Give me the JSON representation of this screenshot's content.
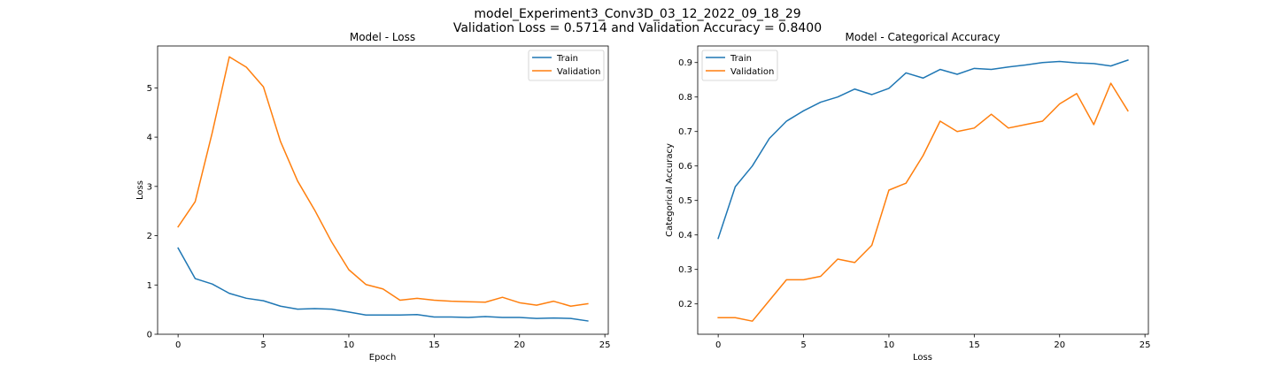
{
  "figure": {
    "title_line1": "model_Experiment3_Conv3D_03_12_2022_09_18_29",
    "title_line2": "Validation Loss = 0.5714 and Validation Accuracy = 0.8400"
  },
  "colors": {
    "train": "#1f77b4",
    "validation": "#ff7f0e"
  },
  "chart_data": [
    {
      "type": "line",
      "title": "Model - Loss",
      "xlabel": "Epoch",
      "ylabel": "Loss",
      "xlim": [
        -1.2,
        25.2
      ],
      "ylim": [
        0,
        5.85
      ],
      "xticks": [
        0,
        5,
        10,
        15,
        20,
        25
      ],
      "yticks": [
        0,
        1,
        2,
        3,
        4,
        5
      ],
      "ytick_decimals": 0,
      "legend": "upper-right",
      "grid": false,
      "x": [
        0,
        1,
        2,
        3,
        4,
        5,
        6,
        7,
        8,
        9,
        10,
        11,
        12,
        13,
        14,
        15,
        16,
        17,
        18,
        19,
        20,
        21,
        22,
        23,
        24
      ],
      "series": [
        {
          "name": "Train",
          "color": "#1f77b4",
          "values": [
            1.75,
            1.13,
            1.02,
            0.83,
            0.73,
            0.68,
            0.57,
            0.51,
            0.52,
            0.51,
            0.45,
            0.39,
            0.39,
            0.39,
            0.4,
            0.35,
            0.35,
            0.34,
            0.36,
            0.34,
            0.34,
            0.32,
            0.33,
            0.32,
            0.27
          ]
        },
        {
          "name": "Validation",
          "color": "#ff7f0e",
          "values": [
            2.18,
            2.69,
            4.09,
            5.63,
            5.42,
            5.02,
            3.91,
            3.11,
            2.52,
            1.87,
            1.31,
            1.01,
            0.92,
            0.69,
            0.73,
            0.69,
            0.67,
            0.66,
            0.65,
            0.75,
            0.64,
            0.59,
            0.67,
            0.57,
            0.62
          ]
        }
      ]
    },
    {
      "type": "line",
      "title": "Model - Categorical Accuracy",
      "xlabel": "Loss",
      "ylabel": "Categorical Accuracy",
      "xlim": [
        -1.2,
        25.2
      ],
      "ylim": [
        0.112,
        0.948
      ],
      "xticks": [
        0,
        5,
        10,
        15,
        20,
        25
      ],
      "yticks": [
        0.2,
        0.3,
        0.4,
        0.5,
        0.6,
        0.7,
        0.8,
        0.9
      ],
      "ytick_decimals": 1,
      "legend": "upper-left",
      "grid": false,
      "x": [
        0,
        1,
        2,
        3,
        4,
        5,
        6,
        7,
        8,
        9,
        10,
        11,
        12,
        13,
        14,
        15,
        16,
        17,
        18,
        19,
        20,
        21,
        22,
        23,
        24
      ],
      "series": [
        {
          "name": "Train",
          "color": "#1f77b4",
          "values": [
            0.39,
            0.54,
            0.6,
            0.68,
            0.73,
            0.76,
            0.785,
            0.8,
            0.823,
            0.807,
            0.825,
            0.87,
            0.855,
            0.88,
            0.866,
            0.883,
            0.88,
            0.887,
            0.893,
            0.9,
            0.903,
            0.899,
            0.897,
            0.89,
            0.907
          ]
        },
        {
          "name": "Validation",
          "color": "#ff7f0e",
          "values": [
            0.16,
            0.16,
            0.15,
            0.21,
            0.27,
            0.27,
            0.28,
            0.33,
            0.32,
            0.37,
            0.53,
            0.55,
            0.63,
            0.73,
            0.7,
            0.71,
            0.75,
            0.71,
            0.72,
            0.73,
            0.78,
            0.81,
            0.72,
            0.84,
            0.76
          ]
        }
      ]
    }
  ]
}
